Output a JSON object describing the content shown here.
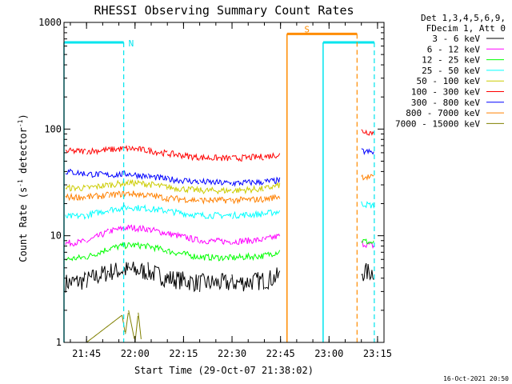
{
  "chart_data": {
    "type": "line",
    "title": "RHESSI Observing Summary Count Rates",
    "xlabel": "Start Time (29-Oct-07 21:38:02)",
    "ylabel": "Count Rate (s",
    "ylabel_sup": "-1",
    "ylabel_tail": " detector",
    "ylabel_sup2": "-1",
    "ylabel_close": ")",
    "y_scale": "log",
    "ylim": [
      1,
      1000
    ],
    "xlim": [
      "21:38:02",
      "23:17:00"
    ],
    "x_ticks": [
      "21:45",
      "22:00",
      "22:15",
      "22:30",
      "22:45",
      "23:00",
      "23:15"
    ],
    "y_ticks": [
      "1",
      "10",
      "100",
      "1000"
    ],
    "timestamp": "16-Oct-2021 20:50",
    "legend": {
      "header1": "Det 1,3,4,5,6,9,",
      "header2": "FDecim 1, Att 0",
      "placement": "right"
    },
    "flags": [
      {
        "label": "N",
        "name": "night",
        "color": "#00e5ee",
        "level": 650,
        "intervals": [
          [
            "21:38:02",
            "21:56:30"
          ],
          [
            "22:58:10",
            "23:14:00"
          ]
        ]
      },
      {
        "label": "S",
        "name": "saa",
        "color": "#ff8c00",
        "level": 780,
        "intervals": [
          [
            "22:47:00",
            "23:08:40"
          ]
        ]
      }
    ],
    "series": [
      {
        "name": "3 - 6 keV",
        "color": "#000000",
        "x": [
          "21:38:30",
          "21:45",
          "21:52",
          "21:58",
          "22:04",
          "22:10",
          "22:20",
          "22:30",
          "22:40",
          "22:45",
          "23:10",
          "23:14"
        ],
        "y": [
          3.6,
          3.8,
          4.6,
          4.8,
          4.6,
          4.0,
          3.6,
          3.6,
          3.8,
          4.2,
          4.5,
          4.6
        ]
      },
      {
        "name": "6 - 12 keV",
        "color": "#ff00ff",
        "x": [
          "21:38:30",
          "21:45",
          "21:52",
          "21:58",
          "22:04",
          "22:10",
          "22:20",
          "22:30",
          "22:40",
          "22:45",
          "23:10",
          "23:14"
        ],
        "y": [
          8.5,
          8.8,
          11.0,
          12.0,
          11.5,
          10.5,
          9.0,
          8.8,
          9.2,
          10.0,
          8.5,
          8.0
        ]
      },
      {
        "name": "12 - 25 keV",
        "color": "#00ff00",
        "x": [
          "21:38:30",
          "21:45",
          "21:52",
          "21:58",
          "22:04",
          "22:10",
          "22:20",
          "22:30",
          "22:40",
          "22:45",
          "23:10",
          "23:14"
        ],
        "y": [
          6.0,
          6.3,
          7.6,
          8.2,
          8.0,
          7.2,
          6.3,
          6.2,
          6.5,
          7.2,
          9.0,
          8.5
        ]
      },
      {
        "name": "25 - 50 keV",
        "color": "#00ffff",
        "x": [
          "21:38:30",
          "21:45",
          "21:52",
          "21:58",
          "22:04",
          "22:10",
          "22:20",
          "22:30",
          "22:40",
          "22:45",
          "23:10",
          "23:14"
        ],
        "y": [
          15.0,
          15.5,
          17.5,
          18.5,
          18.0,
          17.0,
          15.5,
          15.5,
          16.0,
          17.0,
          20.0,
          19.0
        ]
      },
      {
        "name": "50 - 100 keV",
        "color": "#cccc00",
        "x": [
          "21:38:30",
          "21:45",
          "21:52",
          "21:58",
          "22:04",
          "22:10",
          "22:20",
          "22:30",
          "22:40",
          "22:45",
          "23:10",
          "23:14"
        ],
        "y": [
          28.0,
          28.0,
          30.0,
          31.5,
          30.5,
          28.5,
          26.5,
          26.5,
          27.5,
          30.0,
          null,
          null
        ]
      },
      {
        "name": "100 - 300 keV",
        "color": "#ff0000",
        "x": [
          "21:38:30",
          "21:45",
          "21:52",
          "21:58",
          "22:04",
          "22:10",
          "22:20",
          "22:30",
          "22:40",
          "22:45",
          "23:10",
          "23:14"
        ],
        "y": [
          62,
          62,
          64,
          66,
          63,
          59,
          54,
          53,
          55,
          58,
          96,
          92
        ]
      },
      {
        "name": "300 - 800 keV",
        "color": "#0000ff",
        "x": [
          "21:38:30",
          "21:45",
          "21:52",
          "21:58",
          "22:04",
          "22:10",
          "22:20",
          "22:30",
          "22:40",
          "22:45",
          "23:10",
          "23:14"
        ],
        "y": [
          40,
          38,
          37,
          38,
          36,
          34,
          32,
          31,
          32,
          33,
          62,
          60
        ]
      },
      {
        "name": "800 - 7000 keV",
        "color": "#ff8000",
        "x": [
          "21:38:30",
          "21:45",
          "21:52",
          "21:58",
          "22:04",
          "22:10",
          "22:20",
          "22:30",
          "22:40",
          "22:45",
          "23:10",
          "23:14"
        ],
        "y": [
          23,
          23,
          24,
          25,
          24,
          22.5,
          21.5,
          21.5,
          22,
          23.5,
          36,
          35
        ]
      },
      {
        "name": "7000 - 15000 keV",
        "color": "#808000",
        "x": [
          "21:38:30",
          "21:45",
          "21:56",
          "21:57",
          "21:58",
          "22:00",
          "22:01",
          "22:02",
          "22:30",
          "22:45",
          "23:10",
          "23:14"
        ],
        "y": [
          1,
          1,
          1.8,
          1.2,
          2.0,
          1,
          1.9,
          1,
          1,
          1,
          1,
          1
        ]
      }
    ]
  }
}
